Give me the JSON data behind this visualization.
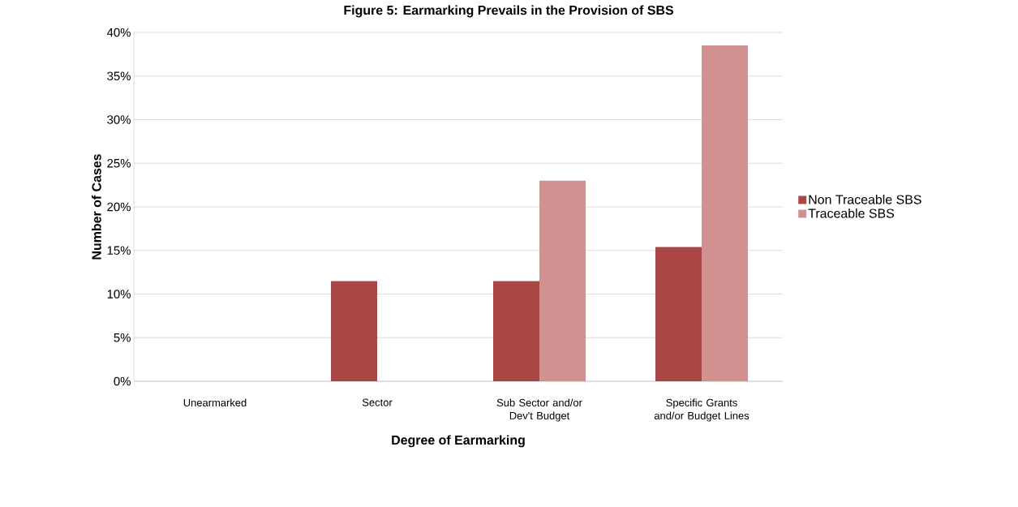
{
  "chart_data": {
    "type": "bar",
    "title": "Figure 5: Earmarking Prevails in the Provision of SBS",
    "xlabel": "Degree of Earmarking",
    "ylabel": "Number of Cases",
    "categories": [
      "Unearmarked",
      "Sector",
      "Sub Sector and/or Dev't Budget",
      "Specific Grants and/or Budget Lines"
    ],
    "series": [
      {
        "name": "Non Traceable SBS",
        "color": "#a94744",
        "values": [
          0,
          11.5,
          11.5,
          15.4
        ]
      },
      {
        "name": "Traceable SBS",
        "color": "#d19191",
        "values": [
          0,
          0,
          23.0,
          38.5
        ]
      }
    ],
    "ylim": [
      0,
      40
    ],
    "yticks": [
      {
        "value": 0,
        "label": "0%"
      },
      {
        "value": 5,
        "label": "5%"
      },
      {
        "value": 10,
        "label": "10%"
      },
      {
        "value": 15,
        "label": "15%"
      },
      {
        "value": 20,
        "label": "20%"
      },
      {
        "value": 25,
        "label": "25%"
      },
      {
        "value": 30,
        "label": "30%"
      },
      {
        "value": 35,
        "label": "35%"
      },
      {
        "value": 40,
        "label": "40%"
      }
    ],
    "grid": "y",
    "legend": "right"
  }
}
